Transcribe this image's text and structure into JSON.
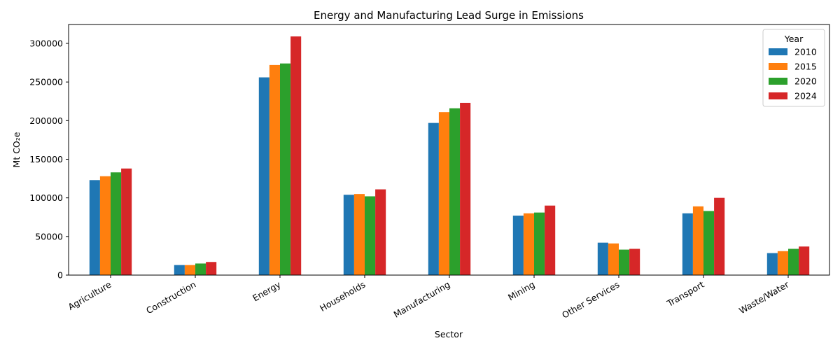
{
  "chart_data": {
    "type": "bar",
    "title": "Energy and Manufacturing Lead Surge in Emissions",
    "xlabel": "Sector",
    "ylabel": "Mt CO₂e",
    "categories": [
      "Agriculture",
      "Construction",
      "Energy",
      "Households",
      "Manufacturing",
      "Mining",
      "Other Services",
      "Transport",
      "Waste/Water"
    ],
    "series": [
      {
        "name": "2010",
        "color": "#1f77b4",
        "values": [
          123000,
          13000,
          256000,
          104000,
          197000,
          77000,
          42000,
          80000,
          28500
        ]
      },
      {
        "name": "2015",
        "color": "#ff7f0e",
        "values": [
          128000,
          13000,
          272000,
          105000,
          211000,
          80000,
          41000,
          89000,
          31000
        ]
      },
      {
        "name": "2020",
        "color": "#2ca02c",
        "values": [
          133000,
          15000,
          274000,
          102000,
          216000,
          81000,
          33000,
          83000,
          34000
        ]
      },
      {
        "name": "2024",
        "color": "#d62728",
        "values": [
          138000,
          17000,
          309000,
          111000,
          223000,
          90000,
          34000,
          100000,
          37000
        ]
      }
    ],
    "ylim": [
      0,
      324450
    ],
    "yticks": [
      0,
      50000,
      100000,
      150000,
      200000,
      250000,
      300000
    ],
    "legend": {
      "title": "Year",
      "placement": "top-right"
    },
    "grid": false
  }
}
